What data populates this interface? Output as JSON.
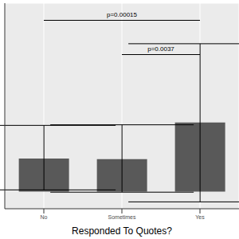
{
  "chart_data": {
    "type": "bar",
    "x_label": "Responded To Quotes?",
    "categories": [
      "No",
      "Sometimes",
      "Yes"
    ],
    "values": [
      0.58,
      0.57,
      1.21
    ],
    "error_low": [
      0.03,
      -0.01,
      -0.18
    ],
    "error_high": [
      1.16,
      1.17,
      2.59
    ],
    "color": "#595959",
    "ylim": [
      -0.3,
      3.3
    ],
    "yticks": [
      0,
      1,
      2,
      3
    ],
    "grid": true,
    "tick_labels": "x",
    "annotations": [
      {
        "text": "p=0.00015",
        "from": "No",
        "to": "Yes",
        "y": 3.0
      },
      {
        "text": "p=0.0037",
        "from": "Sometimes",
        "to": "Yes",
        "y": 2.4
      }
    ]
  }
}
